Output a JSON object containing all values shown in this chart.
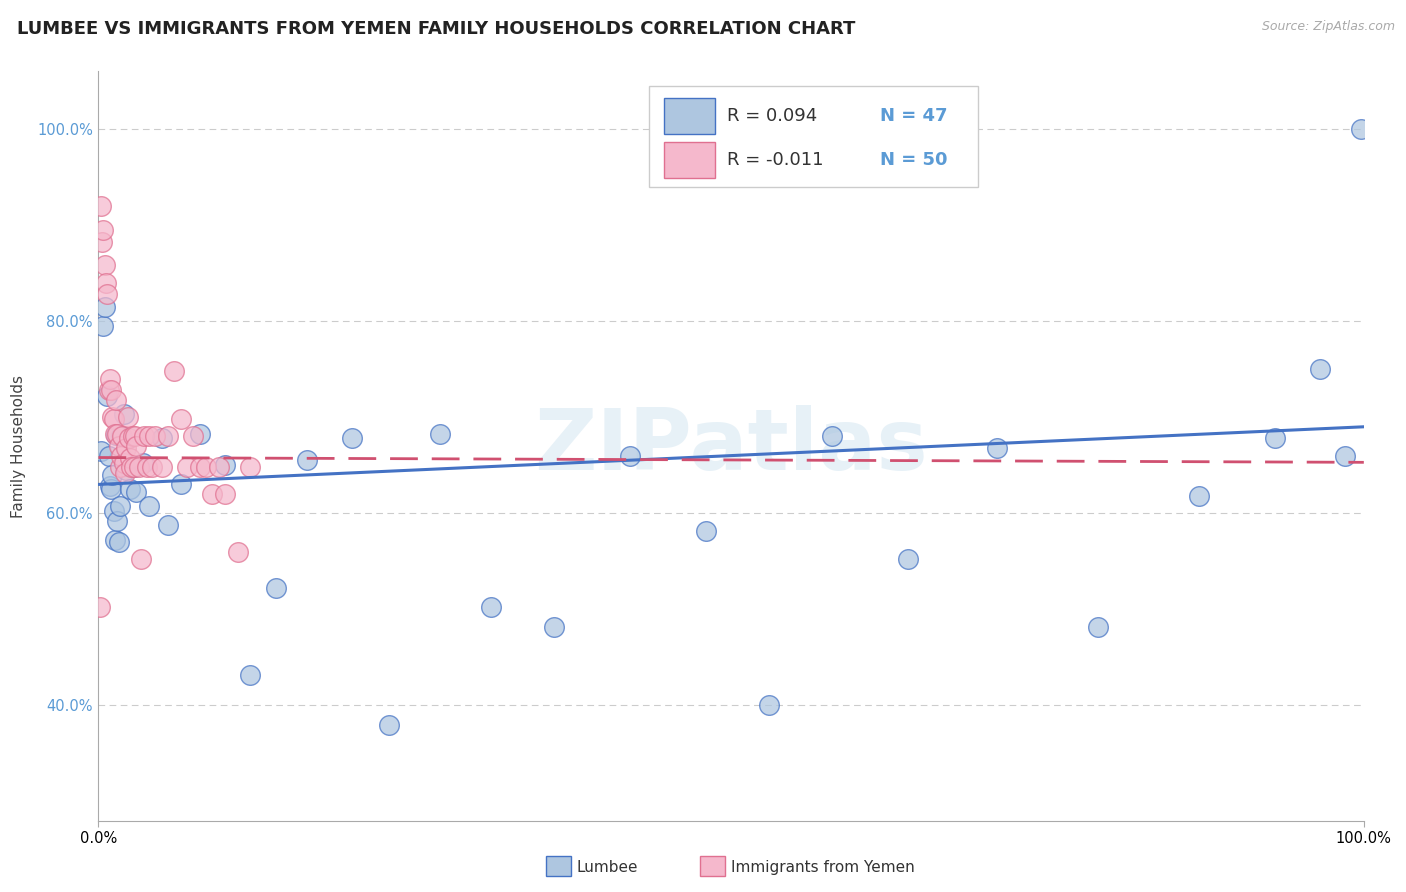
{
  "title": "LUMBEE VS IMMIGRANTS FROM YEMEN FAMILY HOUSEHOLDS CORRELATION CHART",
  "source_text": "Source: ZipAtlas.com",
  "ylabel": "Family Households",
  "lumbee_color": "#aec6e0",
  "yemen_color": "#f5b8cc",
  "lumbee_edge_color": "#4472c4",
  "yemen_edge_color": "#e07090",
  "lumbee_line_color": "#4472c4",
  "yemen_line_color": "#d05070",
  "watermark": "ZIPatlas",
  "xlim": [
    0.0,
    1.0
  ],
  "ylim": [
    0.28,
    1.06
  ],
  "yticks": [
    0.4,
    0.6,
    0.8,
    1.0
  ],
  "grid_color": "#cccccc",
  "background_color": "#ffffff",
  "title_fontsize": 13,
  "axis_label_fontsize": 11,
  "r_lumbee": "0.094",
  "n_lumbee": "47",
  "r_yemen": "-0.011",
  "n_yemen": "50",
  "lumbee_x": [
    0.002,
    0.004,
    0.005,
    0.007,
    0.008,
    0.009,
    0.01,
    0.011,
    0.012,
    0.013,
    0.014,
    0.015,
    0.016,
    0.017,
    0.018,
    0.02,
    0.022,
    0.025,
    0.028,
    0.03,
    0.035,
    0.04,
    0.05,
    0.055,
    0.065,
    0.08,
    0.1,
    0.12,
    0.14,
    0.165,
    0.2,
    0.23,
    0.27,
    0.31,
    0.36,
    0.42,
    0.48,
    0.53,
    0.58,
    0.64,
    0.71,
    0.79,
    0.87,
    0.93,
    0.965,
    0.985,
    0.998
  ],
  "lumbee_y": [
    0.665,
    0.795,
    0.815,
    0.722,
    0.66,
    0.628,
    0.625,
    0.64,
    0.602,
    0.572,
    0.681,
    0.592,
    0.57,
    0.608,
    0.68,
    0.703,
    0.645,
    0.625,
    0.648,
    0.622,
    0.652,
    0.608,
    0.678,
    0.588,
    0.63,
    0.683,
    0.65,
    0.432,
    0.522,
    0.655,
    0.678,
    0.38,
    0.683,
    0.502,
    0.482,
    0.66,
    0.582,
    0.4,
    0.68,
    0.552,
    0.668,
    0.482,
    0.618,
    0.678,
    0.75,
    0.66,
    1.0
  ],
  "yemen_x": [
    0.001,
    0.002,
    0.003,
    0.004,
    0.005,
    0.006,
    0.007,
    0.008,
    0.009,
    0.01,
    0.011,
    0.012,
    0.013,
    0.014,
    0.015,
    0.016,
    0.017,
    0.018,
    0.019,
    0.02,
    0.021,
    0.022,
    0.023,
    0.024,
    0.025,
    0.026,
    0.027,
    0.028,
    0.029,
    0.03,
    0.032,
    0.034,
    0.036,
    0.038,
    0.04,
    0.042,
    0.045,
    0.05,
    0.055,
    0.06,
    0.065,
    0.07,
    0.075,
    0.08,
    0.085,
    0.09,
    0.095,
    0.1,
    0.11,
    0.12
  ],
  "yemen_y": [
    0.502,
    0.92,
    0.882,
    0.895,
    0.858,
    0.84,
    0.828,
    0.728,
    0.74,
    0.728,
    0.7,
    0.698,
    0.682,
    0.718,
    0.682,
    0.67,
    0.648,
    0.66,
    0.68,
    0.652,
    0.642,
    0.668,
    0.7,
    0.678,
    0.658,
    0.648,
    0.68,
    0.648,
    0.68,
    0.67,
    0.648,
    0.552,
    0.68,
    0.648,
    0.68,
    0.648,
    0.68,
    0.648,
    0.68,
    0.748,
    0.698,
    0.648,
    0.68,
    0.648,
    0.648,
    0.62,
    0.648,
    0.62,
    0.56,
    0.648
  ]
}
